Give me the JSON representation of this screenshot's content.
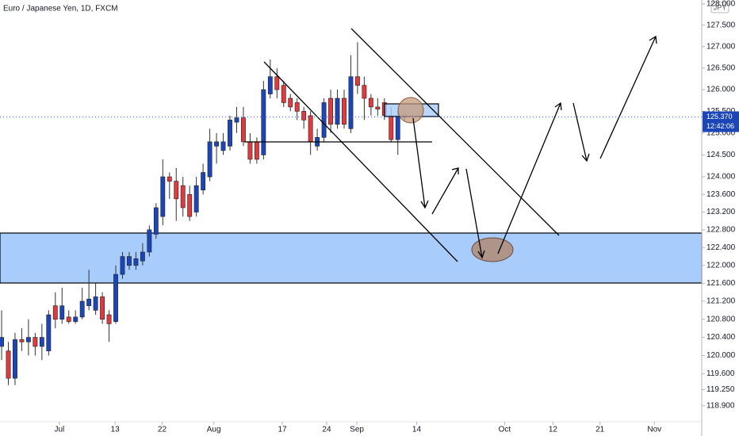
{
  "chart_data": {
    "type": "candlestick",
    "title": "Euro / Japanese Yen, 1D, FXCM",
    "currency": "JPY",
    "last_price": {
      "value": 125.37,
      "label": "125.370"
    },
    "countdown": "12:42:06",
    "up_color": "#1c46b8",
    "down_color": "#e0393e",
    "log_scale": true,
    "x": [
      0,
      1,
      2,
      3,
      4,
      5,
      6,
      7,
      8,
      9,
      10,
      11,
      12,
      13,
      14,
      15,
      16,
      17,
      18,
      19,
      20,
      21,
      22,
      23,
      24,
      25,
      26,
      27,
      28,
      29,
      30,
      31,
      32,
      33,
      34,
      35,
      36,
      37,
      38,
      39,
      40,
      41,
      42,
      43,
      44,
      45,
      46,
      47,
      48,
      49,
      50,
      51,
      52,
      53,
      54,
      55,
      56,
      57,
      58,
      59,
      60
    ],
    "open": [
      120.2,
      120.1,
      119.5,
      120.35,
      120.3,
      120.4,
      120.2,
      120.1,
      121.1,
      120.8,
      120.85,
      120.75,
      120.85,
      121.1,
      121.0,
      121.3,
      120.9,
      120.75,
      121.8,
      122.0,
      122.0,
      122.1,
      122.3,
      122.7,
      123.1,
      124.0,
      123.9,
      123.8,
      123.6,
      123.2,
      123.7,
      124.0,
      124.7,
      124.6,
      124.7,
      125.25,
      125.35,
      124.8,
      124.8,
      124.5,
      125.9,
      126.3,
      126.1,
      125.8,
      125.7,
      125.5,
      125.4,
      124.7,
      124.9,
      125.8,
      125.2,
      125.8,
      125.1,
      126.3,
      126.1,
      125.8,
      125.6,
      125.7,
      125.4,
      124.85,
      125.4
    ],
    "high": [
      121.0,
      120.3,
      120.5,
      120.6,
      120.8,
      120.5,
      120.7,
      121.0,
      121.4,
      121.5,
      121.0,
      121.0,
      121.5,
      121.9,
      121.6,
      121.4,
      121.0,
      122.0,
      122.3,
      122.3,
      122.3,
      122.5,
      122.9,
      123.4,
      124.4,
      124.1,
      124.2,
      124.0,
      123.8,
      124.0,
      124.3,
      125.1,
      125.0,
      125.0,
      125.4,
      125.6,
      125.6,
      125.0,
      124.9,
      126.2,
      126.7,
      126.5,
      126.2,
      125.9,
      125.8,
      125.6,
      125.5,
      125.1,
      125.8,
      126.0,
      126.0,
      126.0,
      126.8,
      127.1,
      126.3,
      125.9,
      125.8,
      125.8,
      125.6,
      125.5,
      125.5
    ],
    "low": [
      119.9,
      119.35,
      119.35,
      120.1,
      120.0,
      120.0,
      119.9,
      120.0,
      120.6,
      120.7,
      120.7,
      120.7,
      120.8,
      121.0,
      120.9,
      120.7,
      120.3,
      120.7,
      121.7,
      121.9,
      121.9,
      122.0,
      122.2,
      122.6,
      122.9,
      123.5,
      123.0,
      123.1,
      123.0,
      123.1,
      123.6,
      123.9,
      124.3,
      124.5,
      124.6,
      125.0,
      124.7,
      124.3,
      124.3,
      124.4,
      125.8,
      125.8,
      125.6,
      125.5,
      125.3,
      125.1,
      124.5,
      124.6,
      124.8,
      125.0,
      125.1,
      125.1,
      125.0,
      125.9,
      125.3,
      125.4,
      125.4,
      125.3,
      124.8,
      124.5,
      125.3
    ],
    "close": [
      120.4,
      119.5,
      120.35,
      120.3,
      120.4,
      120.2,
      120.4,
      120.9,
      120.8,
      121.1,
      120.75,
      120.85,
      121.2,
      121.25,
      121.3,
      120.8,
      120.7,
      121.8,
      122.2,
      122.2,
      122.15,
      122.3,
      122.8,
      123.3,
      124.0,
      123.9,
      123.5,
      123.3,
      123.1,
      123.8,
      124.1,
      124.8,
      124.8,
      124.8,
      125.3,
      125.35,
      124.8,
      124.4,
      124.4,
      126.0,
      126.3,
      126.0,
      125.7,
      125.6,
      125.5,
      125.3,
      124.8,
      124.9,
      125.7,
      125.2,
      125.8,
      125.2,
      126.3,
      126.1,
      125.8,
      125.6,
      125.55,
      125.4,
      124.85,
      125.4,
      125.37
    ],
    "xlim": [
      -0.24,
      104.25
    ],
    "xticks": [
      {
        "value": 8.6,
        "label": "Jul"
      },
      {
        "value": 16.9,
        "label": "13"
      },
      {
        "value": 23.9,
        "label": "22"
      },
      {
        "value": 31.6,
        "label": "Aug"
      },
      {
        "value": 41.8,
        "label": "17"
      },
      {
        "value": 48.4,
        "label": "24"
      },
      {
        "value": 52.9,
        "label": "Sep"
      },
      {
        "value": 61.8,
        "label": "14"
      },
      {
        "value": 74.9,
        "label": "Oct"
      },
      {
        "value": 82.1,
        "label": "12"
      },
      {
        "value": 89.1,
        "label": "21"
      },
      {
        "value": 97.2,
        "label": "Nov"
      }
    ],
    "ylim": [
      118.55,
      128.09
    ],
    "yticks": [
      {
        "value": 118.9,
        "label": "118.900"
      },
      {
        "value": 119.25,
        "label": "119.250"
      },
      {
        "value": 119.6,
        "label": "119.600"
      },
      {
        "value": 120,
        "label": "120.000"
      },
      {
        "value": 120.4,
        "label": "120.400"
      },
      {
        "value": 120.8,
        "label": "120.800"
      },
      {
        "value": 121.2,
        "label": "121.200"
      },
      {
        "value": 121.6,
        "label": "121.600"
      },
      {
        "value": 122,
        "label": "122.000"
      },
      {
        "value": 122.4,
        "label": "122.400"
      },
      {
        "value": 122.8,
        "label": "122.800"
      },
      {
        "value": 123.2,
        "label": "123.200"
      },
      {
        "value": 123.6,
        "label": "123.600"
      },
      {
        "value": 124,
        "label": "124.000"
      },
      {
        "value": 124.5,
        "label": "124.500"
      },
      {
        "value": 125,
        "label": "125.000"
      },
      {
        "value": 125.5,
        "label": "125.500"
      },
      {
        "value": 126,
        "label": "126.000"
      },
      {
        "value": 126.5,
        "label": "126.500"
      },
      {
        "value": 127,
        "label": "127.000"
      },
      {
        "value": 127.5,
        "label": "127.500"
      },
      {
        "value": 128,
        "label": "128.000"
      }
    ]
  }
}
